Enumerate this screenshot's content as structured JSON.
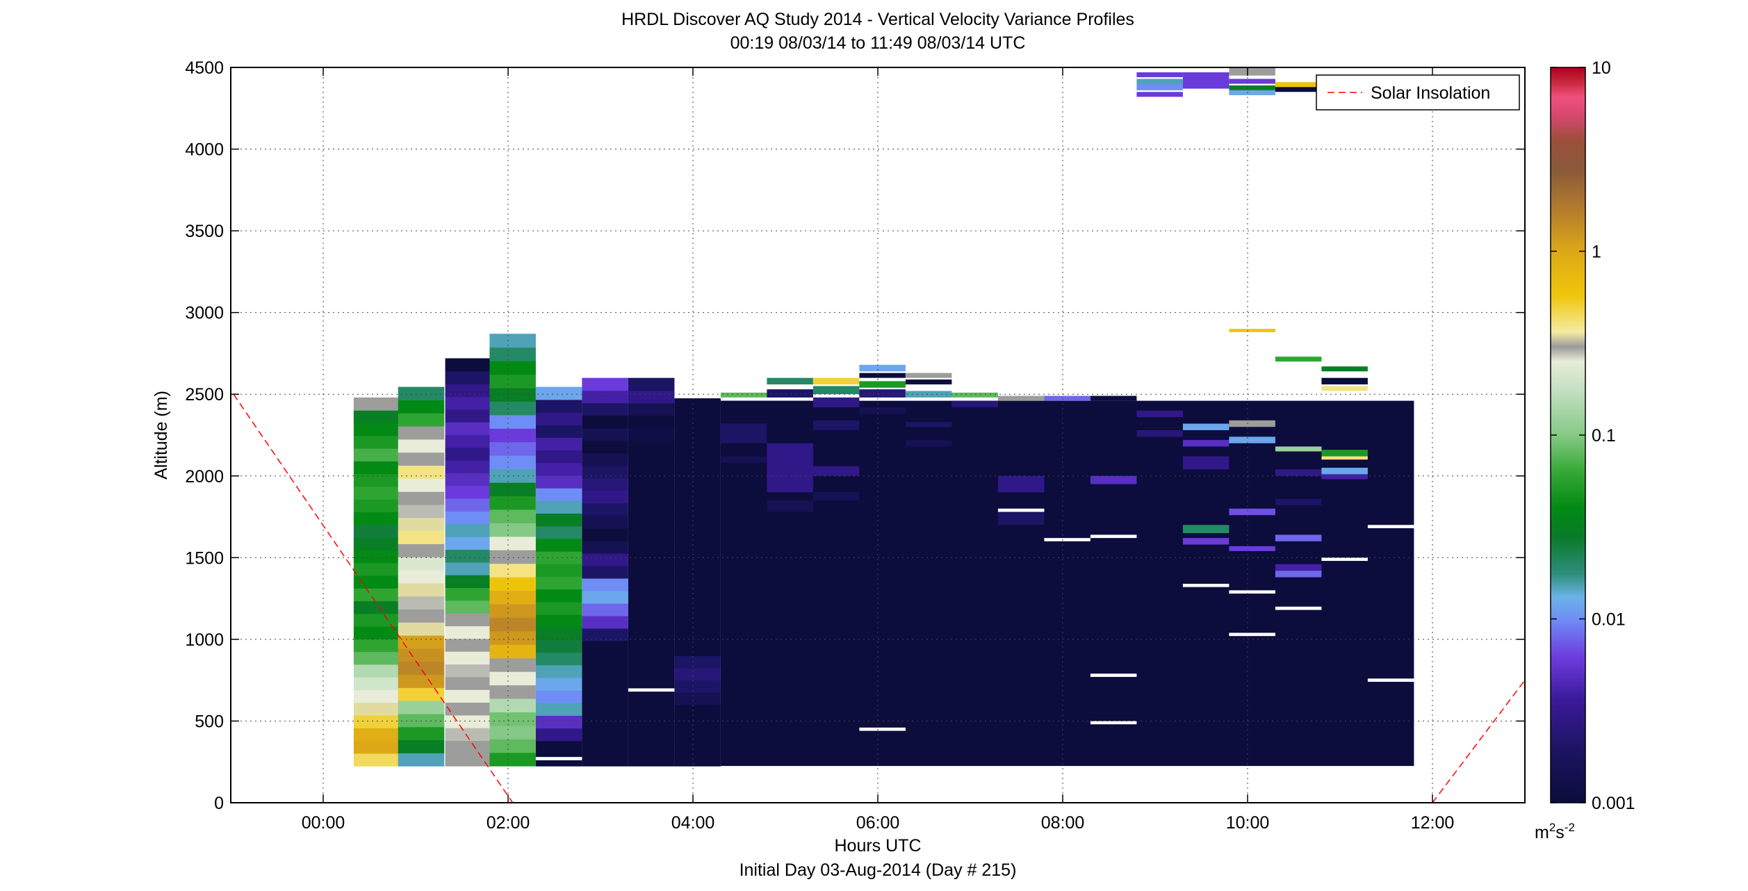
{
  "chart_data": {
    "type": "heatmap",
    "title": "HRDL Discover AQ Study 2014 - Vertical Velocity Variance Profiles",
    "subtitle": "00:19 08/03/14 to 11:49 08/03/14  UTC",
    "xlabel": "Hours UTC",
    "xlabel2": "Initial Day 03-Aug-2014 (Day # 215)",
    "ylabel": "Altitude (m)",
    "xlim": [
      -1.0,
      13.0
    ],
    "ylim": [
      0,
      4500
    ],
    "grid": true,
    "x_ticks": [
      {
        "value": 0,
        "label": "00:00"
      },
      {
        "value": 2,
        "label": "02:00"
      },
      {
        "value": 4,
        "label": "04:00"
      },
      {
        "value": 6,
        "label": "06:00"
      },
      {
        "value": 8,
        "label": "08:00"
      },
      {
        "value": 10,
        "label": "10:00"
      },
      {
        "value": 12,
        "label": "12:00"
      }
    ],
    "y_ticks": [
      {
        "value": 0,
        "label": "0"
      },
      {
        "value": 500,
        "label": "500"
      },
      {
        "value": 1000,
        "label": "1000"
      },
      {
        "value": 1500,
        "label": "1500"
      },
      {
        "value": 2000,
        "label": "2000"
      },
      {
        "value": 2500,
        "label": "2500"
      },
      {
        "value": 3000,
        "label": "3000"
      },
      {
        "value": 3500,
        "label": "3500"
      },
      {
        "value": 4000,
        "label": "4000"
      },
      {
        "value": 4500,
        "label": "4500"
      }
    ],
    "colorbar": {
      "scale": "log",
      "range": [
        0.001,
        10
      ],
      "unit_label": "m²s⁻²",
      "ticks": [
        {
          "value": 10,
          "label": "10"
        },
        {
          "value": 1,
          "label": "1"
        },
        {
          "value": 0.1,
          "label": "0.1"
        },
        {
          "value": 0.01,
          "label": "0.01"
        },
        {
          "value": 0.001,
          "label": "0.001"
        }
      ]
    },
    "legend": {
      "position": "top-right",
      "entries": [
        {
          "name": "Solar Insolation",
          "color": "#ff0000",
          "style": "dashed"
        }
      ]
    },
    "solar_insolation": [
      {
        "x": -0.97,
        "y": 2500
      },
      {
        "x": 2.05,
        "y": 0
      },
      {
        "x": 12.0,
        "y": 0
      },
      {
        "x": 13.0,
        "y": 750
      }
    ],
    "altitude_range": [
      225,
      2475
    ],
    "profile_width_hours": 0.5,
    "profiles": [
      {
        "x": 0.33,
        "top": 2480,
        "values": [
          0.45,
          1.0,
          0.9,
          0.5,
          0.35,
          0.25,
          0.2,
          0.15,
          0.08,
          0.06,
          0.04,
          0.05,
          0.03,
          0.06,
          0.04,
          0.05,
          0.04,
          0.03,
          0.025,
          0.04,
          0.05,
          0.06,
          0.05,
          0.04,
          0.07,
          0.05,
          0.04,
          0.03,
          0.3
        ]
      },
      {
        "x": 0.81,
        "top": 2545,
        "values": [
          0.015,
          0.03,
          0.05,
          0.08,
          0.12,
          0.5,
          1.2,
          1.5,
          1.3,
          1.1,
          0.35,
          0.3,
          0.28,
          0.35,
          0.25,
          0.22,
          0.3,
          0.4,
          0.35,
          0.28,
          0.3,
          0.25,
          0.4,
          0.3,
          0.25,
          0.3,
          0.06,
          0.04,
          0.02
        ]
      },
      {
        "x": 1.32,
        "top": 2720,
        "values": [
          0.3,
          0.3,
          0.28,
          0.25,
          0.3,
          0.25,
          0.3,
          0.28,
          0.25,
          0.3,
          0.25,
          0.3,
          0.08,
          0.06,
          0.03,
          0.015,
          0.02,
          0.012,
          0.015,
          0.01,
          0.008,
          0.006,
          0.005,
          0.004,
          0.003,
          0.004,
          0.005,
          0.003,
          0.004,
          0.003,
          0.002,
          0.001
        ]
      },
      {
        "x": 1.8,
        "top": 2870,
        "values": [
          0.05,
          0.08,
          0.1,
          0.09,
          0.15,
          0.3,
          0.25,
          0.3,
          0.8,
          1.2,
          1.5,
          1.2,
          0.9,
          0.6,
          0.4,
          0.3,
          0.25,
          0.1,
          0.08,
          0.05,
          0.03,
          0.015,
          0.01,
          0.008,
          0.006,
          0.01,
          0.02,
          0.03,
          0.05,
          0.04,
          0.02,
          0.015
        ]
      },
      {
        "x": 2.3,
        "top": 2545,
        "values": [
          0.0009,
          0.001,
          0.003,
          0.005,
          0.015,
          0.01,
          0.012,
          0.015,
          0.02,
          0.025,
          0.03,
          0.04,
          0.05,
          0.04,
          0.06,
          0.05,
          0.06,
          0.04,
          0.02,
          0.03,
          0.015,
          0.01,
          0.005,
          0.004,
          0.003,
          0.004,
          0.002,
          0.003,
          0.002,
          0.012
        ]
      },
      {
        "x": 2.8,
        "top": 2600,
        "values": [
          0.001,
          0.001,
          0.001,
          0.001,
          0.001,
          0.001,
          0.001,
          0.001,
          0.001,
          0.001,
          0.002,
          0.005,
          0.008,
          0.012,
          0.01,
          0.002,
          0.003,
          0.0015,
          0.001,
          0.0015,
          0.002,
          0.003,
          0.0025,
          0.002,
          0.0015,
          0.001,
          0.0015,
          0.001,
          0.002,
          0.004,
          0.006
        ]
      },
      {
        "x": 3.3,
        "top": 2600,
        "values": [
          0.001,
          0.001,
          0.001,
          0.0009,
          0.001,
          0.001,
          0.001,
          0.001,
          0.001,
          0.001,
          0.001,
          0.001,
          0.001,
          0.001,
          0.001,
          0.001,
          0.001,
          0.001,
          0.001,
          0.001,
          0.001,
          0.001,
          0.001,
          0.001,
          0.001,
          0.001,
          0.0012,
          0.001,
          0.0015,
          0.003,
          0.002
        ]
      },
      {
        "x": 3.8,
        "top": 2475,
        "values": [
          0.001,
          0.001,
          0.001,
          0.001,
          0.001,
          0.0015,
          0.002,
          0.0025,
          0.002,
          0.001,
          0.001,
          0.001,
          0.001,
          0.001,
          0.001,
          0.001,
          0.001,
          0.001,
          0.001,
          0.001,
          0.001,
          0.001,
          0.001,
          0.001,
          0.001,
          0.001,
          0.001,
          0.001,
          0.001,
          0.001
        ]
      }
    ],
    "sparse_profiles": [
      {
        "x": 4.3,
        "cells": [
          [
            2480,
            2510,
            0.08
          ],
          [
            2420,
            2460,
            0.0009
          ],
          [
            2200,
            2320,
            0.002
          ],
          [
            2080,
            2120,
            0.0015
          ]
        ]
      },
      {
        "x": 4.8,
        "cells": [
          [
            2560,
            2600,
            0.02
          ],
          [
            2480,
            2530,
            0.002
          ],
          [
            2420,
            2460,
            0.0009
          ],
          [
            2300,
            2380,
            0.001
          ],
          [
            1900,
            2200,
            0.003
          ],
          [
            1780,
            1850,
            0.0015
          ]
        ]
      },
      {
        "x": 5.3,
        "cells": [
          [
            2560,
            2600,
            0.5
          ],
          [
            2500,
            2550,
            0.02
          ],
          [
            2420,
            2480,
            0.003
          ],
          [
            2280,
            2340,
            0.002
          ],
          [
            2000,
            2060,
            0.003
          ],
          [
            1850,
            1900,
            0.0025
          ],
          [
            1850,
            1900,
            0.0015
          ]
        ]
      },
      {
        "x": 5.8,
        "cells": [
          [
            2640,
            2680,
            0.012
          ],
          [
            2600,
            2630,
            0.0009
          ],
          [
            2540,
            2580,
            0.05
          ],
          [
            2480,
            2530,
            0.0025
          ],
          [
            2380,
            2420,
            0.0015
          ],
          [
            2200,
            2240,
            0.0009
          ],
          [
            2050,
            2100,
            0.001
          ]
        ]
      },
      {
        "x": 6.3,
        "cells": [
          [
            2600,
            2630,
            0.3
          ],
          [
            2560,
            2590,
            0.0009
          ],
          [
            2480,
            2520,
            0.015
          ],
          [
            2300,
            2330,
            0.002
          ],
          [
            2180,
            2220,
            0.0015
          ]
        ]
      },
      {
        "x": 6.8,
        "cells": [
          [
            2480,
            2510,
            0.08
          ],
          [
            2420,
            2460,
            0.0025
          ],
          [
            2300,
            2340,
            0.001
          ]
        ]
      },
      {
        "x": 7.3,
        "cells": [
          [
            2460,
            2490,
            0.3
          ],
          [
            1900,
            2000,
            0.003
          ],
          [
            1700,
            1800,
            0.002
          ]
        ]
      },
      {
        "x": 7.8,
        "cells": [
          [
            2460,
            2490,
            0.008
          ],
          [
            2300,
            2380,
            0.001
          ],
          [
            2100,
            2200,
            0.001
          ],
          [
            1800,
            1900,
            0.001
          ]
        ]
      },
      {
        "x": 8.3,
        "cells": [
          [
            2460,
            2490,
            0.0009
          ],
          [
            2300,
            2400,
            0.001
          ],
          [
            1950,
            2000,
            0.005
          ]
        ]
      },
      {
        "x": 8.8,
        "cells": [
          [
            4440,
            4470,
            0.006
          ],
          [
            4400,
            4430,
            0.015
          ],
          [
            4360,
            4400,
            0.01
          ],
          [
            4320,
            4350,
            0.006
          ],
          [
            2360,
            2400,
            0.003
          ],
          [
            2240,
            2280,
            0.0025
          ]
        ]
      },
      {
        "x": 9.3,
        "cells": [
          [
            4370,
            4470,
            0.006
          ],
          [
            2280,
            2320,
            0.012
          ],
          [
            2180,
            2220,
            0.005
          ],
          [
            2040,
            2120,
            0.003
          ],
          [
            1650,
            1700,
            0.02
          ],
          [
            1580,
            1620,
            0.006
          ]
        ]
      },
      {
        "x": 9.8,
        "cells": [
          [
            4450,
            4500,
            0.3
          ],
          [
            4400,
            4430,
            0.006
          ],
          [
            4360,
            4390,
            0.03
          ],
          [
            4330,
            4360,
            0.012
          ],
          [
            2880,
            2900,
            0.6
          ],
          [
            2300,
            2340,
            0.3
          ],
          [
            2200,
            2240,
            0.012
          ],
          [
            1760,
            1800,
            0.007
          ],
          [
            1540,
            1570,
            0.006
          ]
        ]
      },
      {
        "x": 10.3,
        "cells": [
          [
            4380,
            4410,
            0.6
          ],
          [
            4350,
            4380,
            0.0009
          ],
          [
            2700,
            2730,
            0.06
          ],
          [
            2150,
            2180,
            0.12
          ],
          [
            2000,
            2040,
            0.003
          ],
          [
            1820,
            1860,
            0.002
          ],
          [
            1600,
            1640,
            0.008
          ],
          [
            1420,
            1460,
            0.004
          ],
          [
            1380,
            1420,
            0.008
          ]
        ]
      },
      {
        "x": 10.8,
        "cells": [
          [
            2640,
            2670,
            0.03
          ],
          [
            2560,
            2600,
            0.0009
          ],
          [
            2520,
            2550,
            0.4
          ],
          [
            2120,
            2160,
            0.05
          ],
          [
            2100,
            2120,
            0.4
          ],
          [
            2010,
            2050,
            0.012
          ],
          [
            1980,
            2010,
            0.004
          ]
        ]
      }
    ],
    "dark_blocks": [
      {
        "x0": 4.3,
        "x1": 11.8,
        "y0": 225,
        "y1": 2460
      }
    ]
  }
}
